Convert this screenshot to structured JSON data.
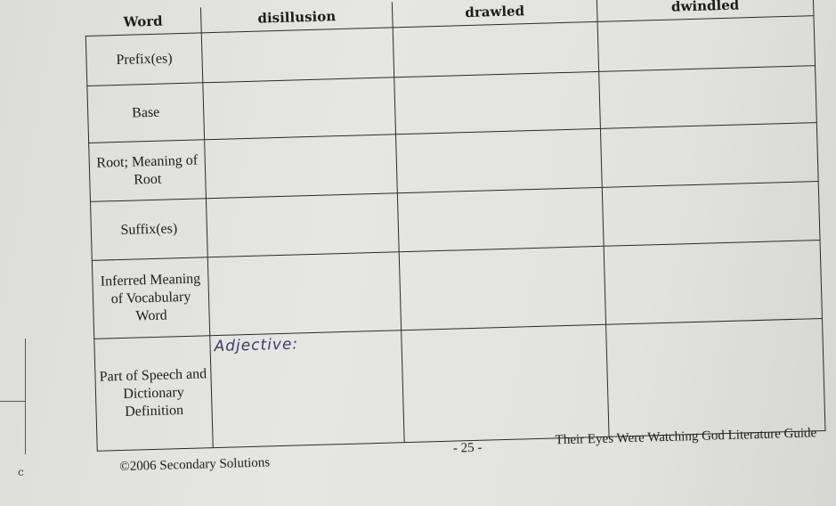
{
  "table": {
    "headers": [
      "Word",
      "disillusion",
      "drawled",
      "dwindled"
    ],
    "rows": [
      {
        "label": "Prefix(es)",
        "cells": [
          "",
          "",
          ""
        ]
      },
      {
        "label": "Base",
        "cells": [
          "",
          "",
          ""
        ]
      },
      {
        "label": "Root; Meaning of Root",
        "cells": [
          "",
          "",
          ""
        ]
      },
      {
        "label": "Suffix(es)",
        "cells": [
          "",
          "",
          ""
        ]
      },
      {
        "label": "Inferred Meaning of Vocabulary Word",
        "cells": [
          "",
          "",
          ""
        ]
      },
      {
        "label": "Part of Speech and Dictionary Definition",
        "cells": [
          "Adjective:",
          "",
          ""
        ]
      }
    ]
  },
  "footer": {
    "copyright": "©2006 Secondary Solutions",
    "page": "- 25 -",
    "title": "Their Eyes Were Watching God Literature Guide"
  },
  "margin_mark": "c"
}
